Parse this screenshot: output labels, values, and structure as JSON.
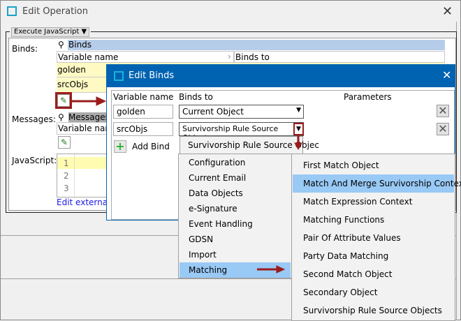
{
  "window": {
    "title": "Edit Operation",
    "close": "✕"
  },
  "operation": {
    "type_select": "Execute JavaScript"
  },
  "binds": {
    "label": "Binds:",
    "header": "Binds",
    "col_variable": "Variable name",
    "col_binds_to": "Binds to",
    "rows": [
      "golden",
      "srcObjs"
    ]
  },
  "messages": {
    "label": "Messages:",
    "header": "Messages",
    "col_variable": "Variable name"
  },
  "javascript": {
    "label": "JavaScript:",
    "line_numbers": [
      "1",
      "2",
      "3"
    ],
    "edit_externally": "Edit externally"
  },
  "dialog": {
    "title": "Edit Binds",
    "close": "✕",
    "col_variable": "Variable name",
    "col_binds_to": "Binds to",
    "col_parameters": "Parameters",
    "rows": [
      {
        "variable": "golden",
        "binds_to": "Current Object"
      },
      {
        "variable": "srcObjs",
        "binds_to": "Survivorship Rule Source Objects"
      }
    ],
    "add_bind": "Add Bind"
  },
  "dropdown": {
    "current": "Survivorship Rule Source Objec",
    "items": [
      "Configuration",
      "Current Email",
      "Data Objects",
      "e-Signature",
      "Event Handling",
      "GDSN",
      "Import",
      "Matching"
    ],
    "highlighted": "Matching"
  },
  "submenu": {
    "items": [
      "First Match Object",
      "Match And Merge Survivorship Context",
      "Match Expression Context",
      "Matching Functions",
      "Pair Of Attribute Values",
      "Party Data Matching",
      "Second Match Object",
      "Secondary Object",
      "Survivorship Rule Source Objects"
    ],
    "highlighted": "Match And Merge Survivorship Context"
  },
  "colors": {
    "title_bar": "#0063b1",
    "highlight": "#99c9f5",
    "annotation": "#9b1c1c",
    "binds_header": "#b6cdea",
    "row_yellow": "#fff9c4"
  }
}
